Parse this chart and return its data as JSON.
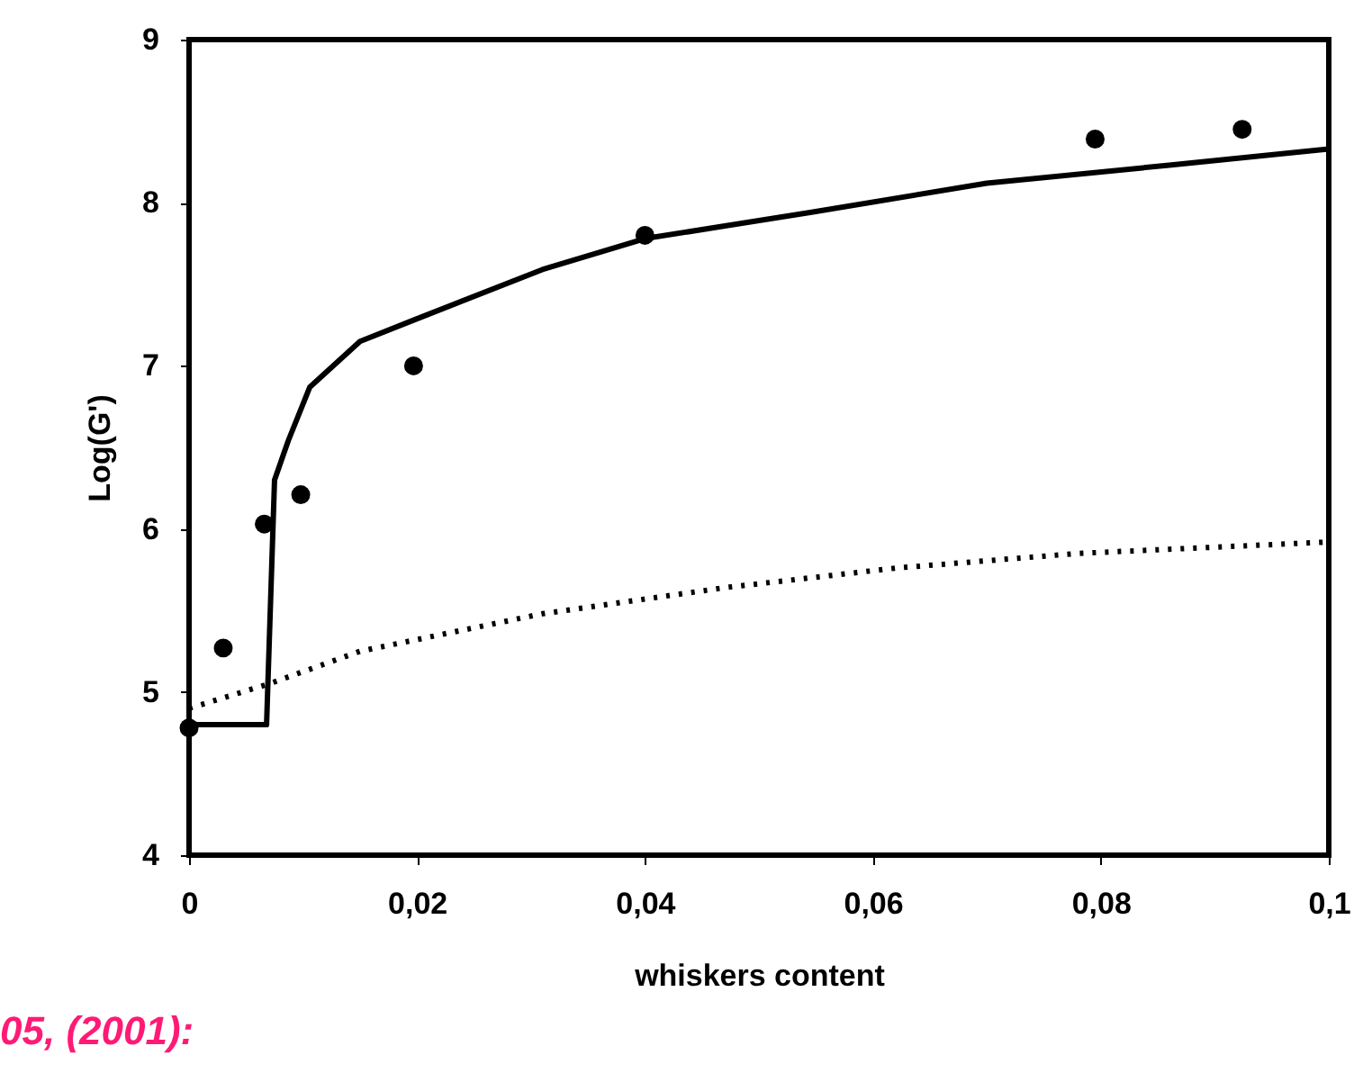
{
  "chart_data": {
    "type": "scatter",
    "xlabel": "whiskers content",
    "ylabel": "Log(G')",
    "annotations": [
      "05, (2001):"
    ],
    "xlim": [
      0,
      0.1
    ],
    "ylim": [
      4,
      9
    ],
    "xticks": [
      0,
      {
        "value": 0.02,
        "label": "0,02"
      },
      {
        "value": 0.04,
        "label": "0,04"
      },
      {
        "value": 0.06,
        "label": "0,06"
      },
      {
        "value": 0.08,
        "label": "0,08"
      },
      {
        "value": 0.1,
        "label": "0,1"
      }
    ],
    "yticks": [
      4,
      5,
      6,
      7,
      8,
      9
    ],
    "grid": false,
    "series": [
      {
        "marker": "circle",
        "color": "#000000",
        "x": [
          0,
          0.003,
          0.0066,
          0.0098,
          0.0197,
          0.04,
          0.0795,
          0.0924
        ],
        "values": [
          4.78,
          5.27,
          6.03,
          6.21,
          7.0,
          7.8,
          8.39,
          8.45
        ]
      },
      {
        "type": "line",
        "marker": "none",
        "color": "#000000",
        "line_style": "solid",
        "x": [
          0,
          0.0068,
          0.0075,
          0.0087,
          0.0106,
          0.015,
          0.0197,
          0.031,
          0.04,
          0.0545,
          0.07,
          0.086,
          0.1
        ],
        "values": [
          4.8,
          4.8,
          6.3,
          6.54,
          6.87,
          7.15,
          7.28,
          7.59,
          7.78,
          7.94,
          8.12,
          8.23,
          8.33
        ]
      },
      {
        "type": "line",
        "marker": "none",
        "color": "#000000",
        "line_style": "dotted",
        "x": [
          0,
          0.007,
          0.015,
          0.031,
          0.047,
          0.062,
          0.078,
          0.1
        ],
        "values": [
          4.9,
          5.05,
          5.25,
          5.48,
          5.64,
          5.76,
          5.85,
          5.92
        ]
      }
    ]
  }
}
